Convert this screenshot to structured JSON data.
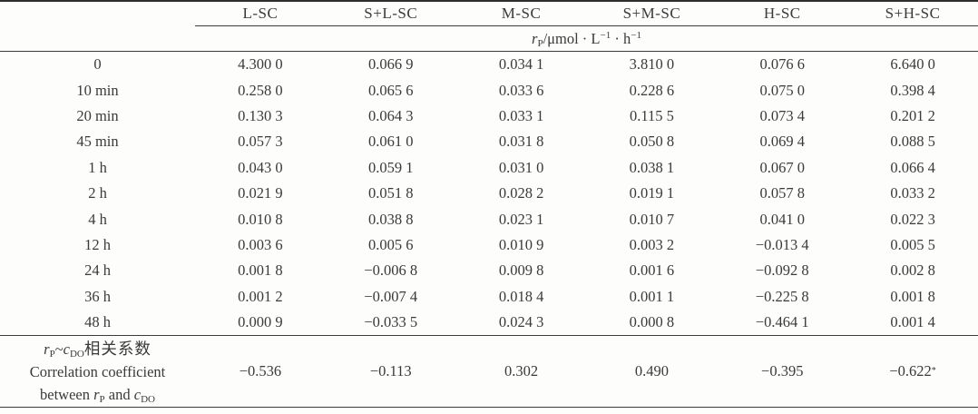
{
  "table": {
    "columns": [
      "L-SC",
      "S+L-SC",
      "M-SC",
      "S+M-SC",
      "H-SC",
      "S+H-SC"
    ],
    "unit": {
      "sym": "r",
      "sym_sub": "P",
      "seg1": "/μmol · L",
      "sup1": "−1",
      "seg2": " · h",
      "sup2": "−1"
    },
    "rows": [
      {
        "label": "0",
        "values": [
          "4.300 0",
          "0.066 9",
          "0.034 1",
          "3.810 0",
          "0.076 6",
          "6.640 0"
        ]
      },
      {
        "label": "10 min",
        "values": [
          "0.258 0",
          "0.065 6",
          "0.033 6",
          "0.228 6",
          "0.075 0",
          "0.398 4"
        ]
      },
      {
        "label": "20 min",
        "values": [
          "0.130 3",
          "0.064 3",
          "0.033 1",
          "0.115 5",
          "0.073 4",
          "0.201 2"
        ]
      },
      {
        "label": "45 min",
        "values": [
          "0.057 3",
          "0.061 0",
          "0.031 8",
          "0.050 8",
          "0.069 4",
          "0.088 5"
        ]
      },
      {
        "label": "1 h",
        "values": [
          "0.043 0",
          "0.059 1",
          "0.031 0",
          "0.038 1",
          "0.067 0",
          "0.066 4"
        ]
      },
      {
        "label": "2 h",
        "values": [
          "0.021 9",
          "0.051 8",
          "0.028 2",
          "0.019 1",
          "0.057 8",
          "0.033 2"
        ]
      },
      {
        "label": "4 h",
        "values": [
          "0.010 8",
          "0.038 8",
          "0.023 1",
          "0.010 7",
          "0.041 0",
          "0.022 3"
        ]
      },
      {
        "label": "12 h",
        "values": [
          "0.003 6",
          "0.005 6",
          "0.010 9",
          "0.003 2",
          "−0.013 4",
          "0.005 5"
        ]
      },
      {
        "label": "24 h",
        "values": [
          "0.001 8",
          "−0.006 8",
          "0.009 8",
          "0.001 6",
          "−0.092 8",
          "0.002 8"
        ]
      },
      {
        "label": "36 h",
        "values": [
          "0.001 2",
          "−0.007 4",
          "0.018 4",
          "0.001 1",
          "−0.225 8",
          "0.001 8"
        ]
      },
      {
        "label": "48 h",
        "values": [
          "0.000 9",
          "−0.033 5",
          "0.024 3",
          "0.000 8",
          "−0.464 1",
          "0.001 4"
        ]
      }
    ],
    "correlation": {
      "r": "r",
      "r_sub": "P",
      "tilde": "~",
      "c": "c",
      "c_sub": "DO",
      "zh": "相关系数",
      "line2": "Correlation coefficient",
      "line3_pre": "between ",
      "line3_r": "r",
      "line3_r_sub": "P",
      "line3_mid": " and ",
      "line3_c": "c",
      "line3_c_sub": "DO",
      "values": [
        "−0.536",
        "−0.113",
        "0.302",
        "0.490",
        "−0.395",
        "−0.622"
      ],
      "star": "*"
    }
  },
  "colors": {
    "background": "#fdfdfc",
    "text": "#3a3a3a",
    "rule": "#2e2e2e"
  }
}
